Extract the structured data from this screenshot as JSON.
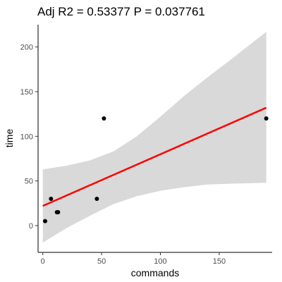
{
  "chart_data": {
    "type": "scatter",
    "title": "Adj R2 =  0.53377  P = 0.037761",
    "xlabel": "commands",
    "ylabel": "time",
    "xlim": [
      -4,
      195
    ],
    "ylim": [
      -30,
      225
    ],
    "xticks": [
      0,
      50,
      100,
      150
    ],
    "yticks": [
      0,
      50,
      100,
      150,
      200
    ],
    "grid": false,
    "points": [
      {
        "x": 2,
        "y": 5
      },
      {
        "x": 7,
        "y": 30
      },
      {
        "x": 12,
        "y": 15
      },
      {
        "x": 13,
        "y": 15
      },
      {
        "x": 46,
        "y": 30
      },
      {
        "x": 52,
        "y": 120
      },
      {
        "x": 190,
        "y": 120
      }
    ],
    "fit_line": {
      "color": "#ff0000",
      "x": [
        0,
        190
      ],
      "y": [
        22,
        132
      ]
    },
    "confidence_band": {
      "color": "#d9d9d9",
      "x": [
        0,
        20,
        40,
        60,
        80,
        100,
        120,
        140,
        160,
        190
      ],
      "upper": [
        63,
        67,
        73,
        83,
        100,
        122,
        145,
        166,
        186,
        217
      ],
      "lower": [
        -19,
        -3,
        11,
        24,
        33,
        39,
        43,
        46,
        47,
        48
      ]
    },
    "point_color": "#000000"
  }
}
